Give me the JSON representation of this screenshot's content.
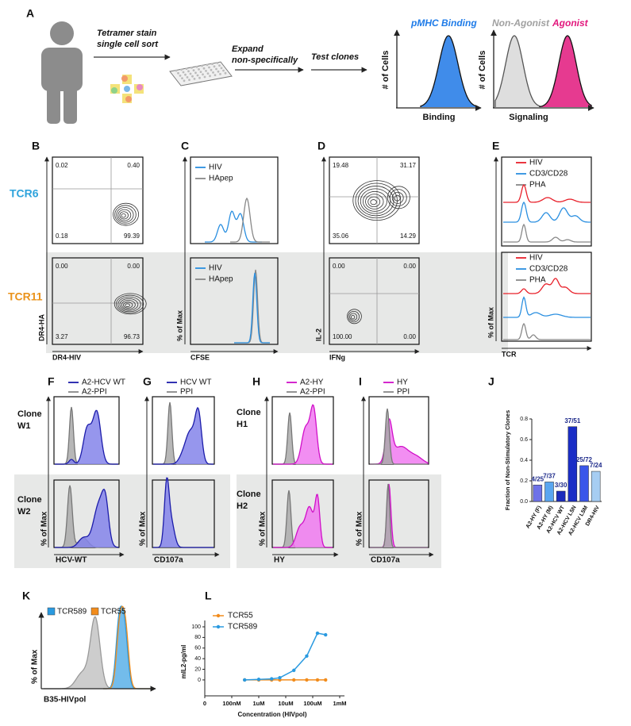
{
  "panel_labels": [
    "A",
    "B",
    "C",
    "D",
    "E",
    "F",
    "G",
    "H",
    "I",
    "J",
    "K",
    "L"
  ],
  "panel_a": {
    "step_1": [
      "Tetramer stain",
      "single cell sort"
    ],
    "step_2": [
      "Expand",
      "non-specifically"
    ],
    "step_3": "Test clones",
    "binding_title": "pMHC Binding",
    "non_agonist": "Non-Agonist",
    "agonist": "Agonist",
    "y_label": "# of Cells",
    "binding_x_label": "Binding",
    "signaling_x_label": "Signaling"
  },
  "row_labels": [
    "TCR6",
    "TCR11"
  ],
  "panel_b": {
    "quadrants": [
      [
        "0.02",
        "0.40",
        "0.18",
        "99.39"
      ],
      [
        "0.00",
        "0.00",
        "3.27",
        "96.73"
      ]
    ],
    "y_label": "DR4-HA",
    "x_label": "DR4-HIV"
  },
  "panel_c": {
    "legend": [
      "HIV",
      "HApep"
    ],
    "y_label": "% of Max",
    "x_label": "CFSE"
  },
  "panel_d": {
    "quadrants": [
      [
        "19.48",
        "31.17",
        "35.06",
        "14.29"
      ],
      [
        "0.00",
        "0.00",
        "100.00",
        "0.00"
      ]
    ],
    "y_label": "IL-2",
    "x_label": "IFNg"
  },
  "panel_e": {
    "legend": [
      "HIV",
      "CD3/CD28",
      "PHA"
    ],
    "y_label": "% of Max",
    "x_label": "TCR"
  },
  "panel_f": {
    "legend": [
      "A2-HCV WT",
      "A2-PPI"
    ],
    "clones": [
      [
        "Clone",
        "W1"
      ],
      [
        "Clone",
        "W2"
      ]
    ],
    "y_label": "% of Max",
    "x_label": "HCV-WT"
  },
  "panel_g": {
    "legend": [
      "HCV WT",
      "PPI"
    ],
    "y_label": "% of Max",
    "x_label": "CD107a"
  },
  "panel_h": {
    "legend": [
      "A2-HY",
      "A2-PPI"
    ],
    "clones": [
      [
        "Clone",
        "H1"
      ],
      [
        "Clone",
        "H2"
      ]
    ],
    "y_label": "% of Max",
    "x_label": "HY"
  },
  "panel_i": {
    "legend": [
      "HY",
      "PPI"
    ],
    "y_label": "% of Max",
    "x_label": "CD107a"
  },
  "panel_k": {
    "legend": [
      "TCR589",
      "TCR55"
    ],
    "y_label": "% of Max",
    "x_label": "B35-HIVpol"
  },
  "chart_data": [
    {
      "type": "bar",
      "y_label": "Fraction of Non-Stimulatory Clones",
      "categories": [
        "A2-HY (F)",
        "A2-HY (M)",
        "A2-HCV WT",
        "A2-HCV L5N",
        "A2-HCV L5M",
        "DR4-HIV"
      ],
      "values": [
        0.16,
        0.189,
        0.1,
        0.725,
        0.347,
        0.292
      ],
      "value_labels": [
        "4/25",
        "7/37",
        "3/30",
        "37/51",
        "25/72",
        "7/24"
      ],
      "colors": [
        "#6e72e8",
        "#5aa6f0",
        "#1c2cbc",
        "#1a2dc6",
        "#3a56ea",
        "#a6cdf2"
      ],
      "ylim": [
        0,
        0.8
      ],
      "yticks": [
        {
          "value": 0,
          "label": "0.0"
        },
        0.2,
        0.4,
        0.6,
        0.8
      ]
    },
    {
      "type": "line",
      "x_label": "Concentration (HIVpol)",
      "y_label": "mIL2-pg/ml",
      "x_scale": "log",
      "x": [
        300,
        1000,
        3000,
        6000,
        20000,
        60000,
        150000,
        300000
      ],
      "xlim": [
        10,
        1000000
      ],
      "xticks": [
        {
          "value": 10,
          "label": "0"
        },
        {
          "value": 100,
          "label": "100nM"
        },
        {
          "value": 1000,
          "label": "1uM"
        },
        {
          "value": 10000,
          "label": "10uM"
        },
        {
          "value": 100000,
          "label": "100uM"
        },
        {
          "value": 1000000,
          "label": "1mM"
        }
      ],
      "ylim": [
        -30,
        100
      ],
      "yticks": [
        0,
        20,
        40,
        60,
        80,
        100
      ],
      "series": [
        {
          "name": "TCR55",
          "color": "#f28c1c",
          "values": [
            0,
            0,
            0,
            0,
            0,
            0,
            0,
            0
          ]
        },
        {
          "name": "TCR589",
          "color": "#2a9ae0",
          "values": [
            0,
            1,
            2,
            4,
            18,
            45,
            88,
            85
          ]
        }
      ]
    }
  ]
}
